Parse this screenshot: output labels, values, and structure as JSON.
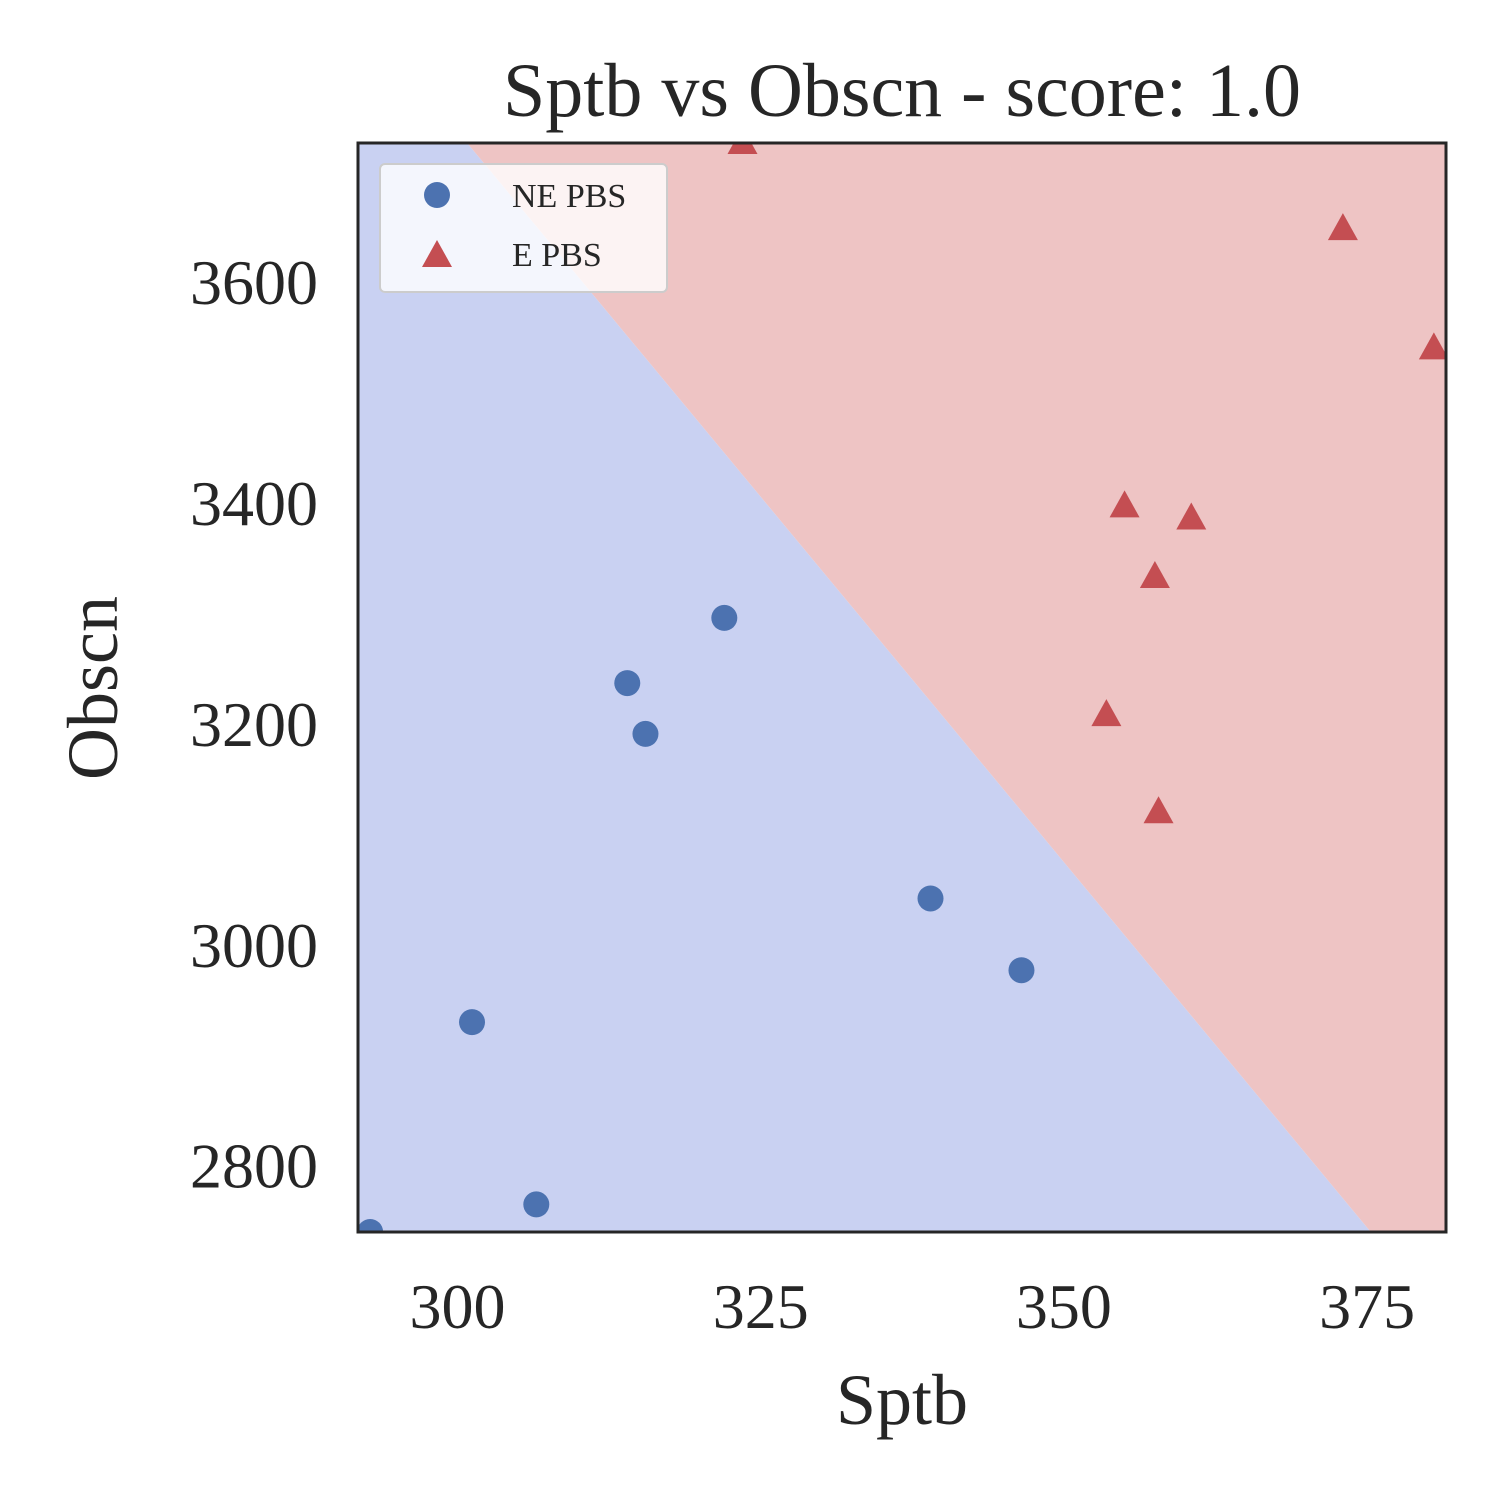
{
  "chart_data": {
    "type": "scatter",
    "title": "Sptb vs Obscn - score: 1.0",
    "xlabel": "Sptb",
    "ylabel": "Obscn",
    "xlim": [
      291.8,
      381.5
    ],
    "ylim": [
      2740,
      3726
    ],
    "xticks": [
      300,
      325,
      350,
      375
    ],
    "yticks": [
      2800,
      3000,
      3200,
      3400,
      3600
    ],
    "grid": false,
    "legend_position": "top-left",
    "decision_boundary": {
      "points": [
        [
          300.8,
          3726
        ],
        [
          375.3,
          2740
        ]
      ],
      "region_colors": {
        "lower_left": "#c9d1f2",
        "upper_right": "#eec4c4"
      }
    },
    "series": [
      {
        "name": "NE PBS",
        "marker": "circle",
        "color": "#4c72b0",
        "x": [
          292.8,
          301.2,
          306.5,
          314.0,
          315.5,
          322.0,
          339.0,
          346.5
        ],
        "y": [
          2740,
          2930,
          2765,
          3237,
          3191,
          3296,
          3042,
          2977
        ]
      },
      {
        "name": "E PBS",
        "marker": "triangle",
        "color": "#c44e52",
        "x": [
          323.5,
          353.5,
          355.0,
          357.5,
          357.8,
          360.5,
          373.0,
          380.5
        ],
        "y": [
          3726,
          3208,
          3397,
          3333,
          3120,
          3386,
          3648,
          3540
        ]
      }
    ]
  }
}
